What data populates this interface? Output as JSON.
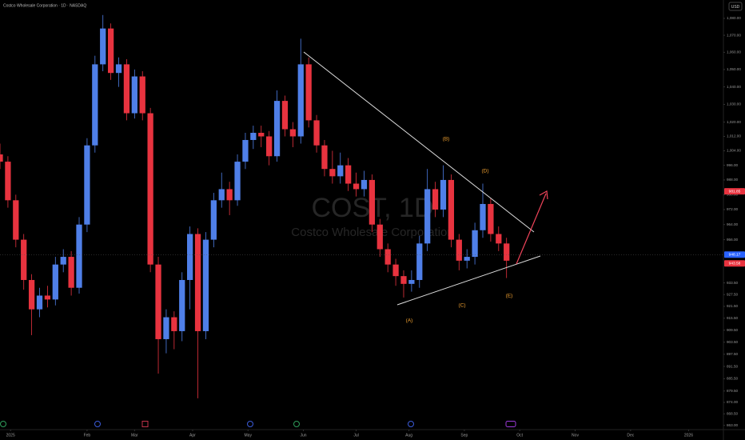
{
  "chart_data": {
    "type": "candlestick",
    "title": "Costco Wholesale Corporation · 1D · NASDAQ",
    "watermark": "COST, 1D",
    "watermark_subtitle": "Costco Wholesale Corporation",
    "currency": "USD",
    "log_y": true,
    "grid": false,
    "up_color": "#4f7fe8",
    "down_color": "#e8333f",
    "x": [
      0,
      3,
      6,
      9,
      12,
      15,
      18,
      21,
      24,
      27,
      30,
      33,
      36,
      39,
      42,
      45,
      48,
      51,
      54,
      57,
      60,
      63,
      66,
      69,
      72,
      75,
      78,
      81,
      84,
      87,
      90,
      93,
      96,
      99,
      102,
      105,
      108,
      111,
      114,
      117,
      120,
      123,
      126,
      129,
      132,
      135,
      138,
      141,
      144,
      147,
      150,
      153,
      156,
      159,
      162,
      165,
      168,
      171,
      174,
      177,
      180,
      183,
      186,
      189,
      192
    ],
    "open": [
      1002,
      998,
      977,
      956,
      935,
      920,
      927,
      925,
      943,
      947,
      931,
      964,
      1007,
      1053,
      1074,
      1048,
      1053,
      1025,
      1046,
      1025,
      943,
      905,
      916,
      909,
      935,
      959,
      909,
      956,
      977,
      983,
      977,
      998,
      1010,
      1014,
      1012,
      1001,
      1032,
      1016,
      1012,
      1053,
      1021,
      1007,
      994,
      990,
      996,
      986,
      983,
      988,
      964,
      951,
      943,
      937,
      933,
      935,
      954,
      983,
      972,
      988,
      956,
      945,
      947,
      961,
      975,
      959,
      954
    ],
    "high": [
      1008,
      1001,
      980,
      959,
      938,
      931,
      932,
      947,
      951,
      950,
      968,
      1011,
      1058,
      1082,
      1077,
      1057,
      1056,
      1050,
      1049,
      1028,
      947,
      920,
      919,
      939,
      963,
      962,
      960,
      981,
      992,
      987,
      1002,
      1014,
      1018,
      1018,
      1015,
      1038,
      1035,
      1020,
      1068,
      1057,
      1024,
      1010,
      1004,
      1003,
      1000,
      992,
      993,
      991,
      967,
      954,
      946,
      940,
      940,
      958,
      994,
      987,
      996,
      991,
      959,
      951,
      965,
      986,
      978,
      963,
      957
    ],
    "low": [
      994,
      973,
      952,
      930,
      907,
      916,
      921,
      922,
      939,
      927,
      928,
      960,
      1003,
      1049,
      1044,
      1040,
      1021,
      1022,
      1021,
      939,
      888,
      898,
      900,
      904,
      920,
      876,
      905,
      952,
      973,
      969,
      974,
      994,
      1005,
      1006,
      996,
      998,
      1012,
      1006,
      1008,
      1017,
      1003,
      990,
      986,
      986,
      982,
      979,
      979,
      960,
      947,
      939,
      932,
      926,
      929,
      931,
      950,
      968,
      968,
      952,
      940,
      941,
      943,
      957,
      955,
      950,
      936
    ],
    "close": [
      998,
      977,
      956,
      935,
      920,
      927,
      925,
      943,
      947,
      931,
      964,
      1007,
      1053,
      1074,
      1048,
      1053,
      1025,
      1046,
      1025,
      943,
      905,
      916,
      909,
      935,
      959,
      909,
      956,
      977,
      983,
      977,
      998,
      1010,
      1014,
      1012,
      1001,
      1032,
      1016,
      1012,
      1053,
      1021,
      1007,
      994,
      990,
      996,
      986,
      983,
      988,
      964,
      951,
      943,
      937,
      933,
      935,
      954,
      983,
      972,
      988,
      956,
      945,
      947,
      961,
      975,
      959,
      954,
      945
    ],
    "xlim": [
      0,
      274.2
    ],
    "ylim": [
      861,
      1091
    ],
    "xticks": [
      {
        "value": 4,
        "label": "2025"
      },
      {
        "value": 33,
        "label": "Feb"
      },
      {
        "value": 51,
        "label": "Mar"
      },
      {
        "value": 73,
        "label": "Apr"
      },
      {
        "value": 94,
        "label": "May"
      },
      {
        "value": 115,
        "label": "Jun"
      },
      {
        "value": 135,
        "label": "Jul"
      },
      {
        "value": 155,
        "label": "Aug"
      },
      {
        "value": 176,
        "label": "Sep"
      },
      {
        "value": 197,
        "label": "Oct"
      },
      {
        "value": 218,
        "label": "Nov"
      },
      {
        "value": 239,
        "label": "Dec"
      },
      {
        "value": 261,
        "label": "2026"
      }
    ],
    "yticks": [
      {
        "value": 1080,
        "label": "1,080.00"
      },
      {
        "value": 1070,
        "label": "1,070.00"
      },
      {
        "value": 1060,
        "label": "1,060.00"
      },
      {
        "value": 1050,
        "label": "1,050.00"
      },
      {
        "value": 1040,
        "label": "1,040.00"
      },
      {
        "value": 1030,
        "label": "1,030.00"
      },
      {
        "value": 1020,
        "label": "1,020.00"
      },
      {
        "value": 1012,
        "label": "1,012.00"
      },
      {
        "value": 1004,
        "label": "1,004.00"
      },
      {
        "value": 996,
        "label": "996.00"
      },
      {
        "value": 988,
        "label": "988.00"
      },
      {
        "value": 980,
        "label": "980.00"
      },
      {
        "value": 972,
        "label": "972.00"
      },
      {
        "value": 964,
        "label": "964.00"
      },
      {
        "value": 956,
        "label": "956.00"
      },
      {
        "value": 933.5,
        "label": "933.50"
      },
      {
        "value": 927.5,
        "label": "927.50"
      },
      {
        "value": 921.5,
        "label": "921.50"
      },
      {
        "value": 915.5,
        "label": "915.50"
      },
      {
        "value": 909.5,
        "label": "909.50"
      },
      {
        "value": 903.5,
        "label": "903.50"
      },
      {
        "value": 897.5,
        "label": "897.50"
      },
      {
        "value": 891.5,
        "label": "891.50"
      },
      {
        "value": 885.5,
        "label": "885.50"
      },
      {
        "value": 879.5,
        "label": "879.50"
      },
      {
        "value": 874,
        "label": "874.00"
      },
      {
        "value": 868.5,
        "label": "868.50"
      },
      {
        "value": 863,
        "label": "863.00"
      }
    ],
    "price_lines": [
      {
        "value": 981.85,
        "color": "#e8333f"
      },
      {
        "value": 948.17,
        "color": "#2962ff"
      },
      {
        "value": 943.58,
        "color": "#e8333f"
      }
    ],
    "annotations": [
      "(A)",
      "(B)",
      "(C)",
      "(D)",
      "(E)"
    ]
  }
}
